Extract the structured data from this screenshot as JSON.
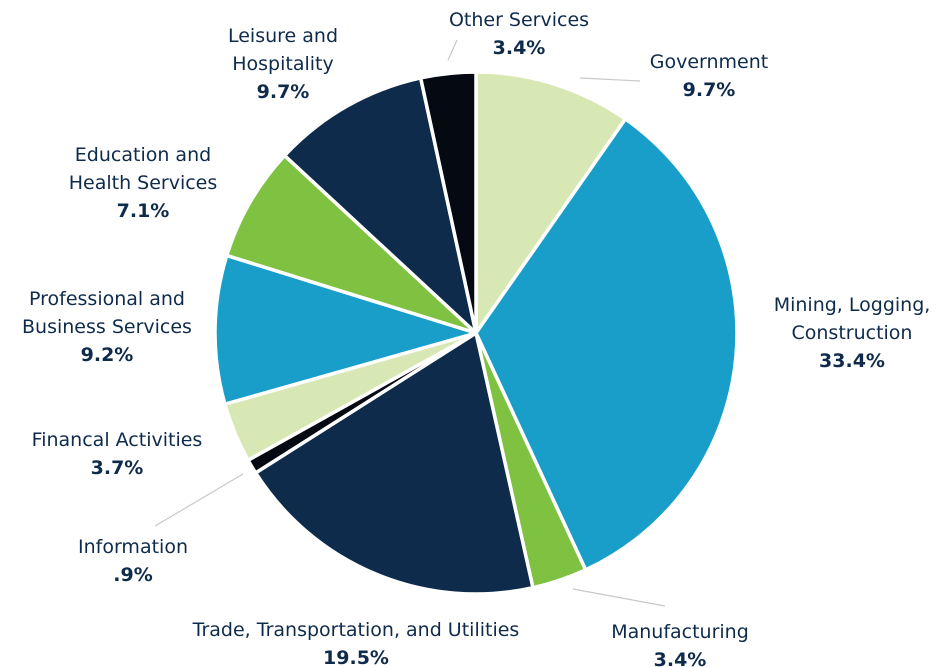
{
  "chart_data": {
    "type": "pie",
    "title": "",
    "start": "top",
    "direction": "clockwise",
    "slices": [
      {
        "name": "Government",
        "label_lines": [
          "Government"
        ],
        "pct_label": "9.7%",
        "value": 9.7,
        "color": "#d7e8b4"
      },
      {
        "name": "Mining, Logging, Construction",
        "label_lines": [
          "Mining, Logging,",
          "Construction"
        ],
        "pct_label": "33.4%",
        "value": 33.4,
        "color": "#199ec9"
      },
      {
        "name": "Manufacturing",
        "label_lines": [
          "Manufacturing"
        ],
        "pct_label": "3.4%",
        "value": 3.4,
        "color": "#7fc242"
      },
      {
        "name": "Trade, Transportation, and Utilities",
        "label_lines": [
          "Trade, Transportation, and Utilities"
        ],
        "pct_label": "19.5%",
        "value": 19.5,
        "color": "#0f2b4b"
      },
      {
        "name": "Information",
        "label_lines": [
          "Information"
        ],
        "pct_label": ".9%",
        "value": 0.9,
        "color": "#050a12"
      },
      {
        "name": "Financal Activities",
        "label_lines": [
          "Financal Activities"
        ],
        "pct_label": "3.7%",
        "value": 3.7,
        "color": "#d7e8b4"
      },
      {
        "name": "Professional and Business Services",
        "label_lines": [
          "Professional and",
          "Business Services"
        ],
        "pct_label": "9.2%",
        "value": 9.2,
        "color": "#199ec9"
      },
      {
        "name": "Education and Health Services",
        "label_lines": [
          "Education and",
          "Health Services"
        ],
        "pct_label": "7.1%",
        "value": 7.1,
        "color": "#7fc242"
      },
      {
        "name": "Leisure and Hospitality",
        "label_lines": [
          "Leisure and",
          "Hospitality"
        ],
        "pct_label": "9.7%",
        "value": 9.7,
        "color": "#0f2b4b"
      },
      {
        "name": "Other Services",
        "label_lines": [
          "Other Services"
        ],
        "pct_label": "3.4%",
        "value": 3.4,
        "color": "#050a12"
      }
    ]
  }
}
